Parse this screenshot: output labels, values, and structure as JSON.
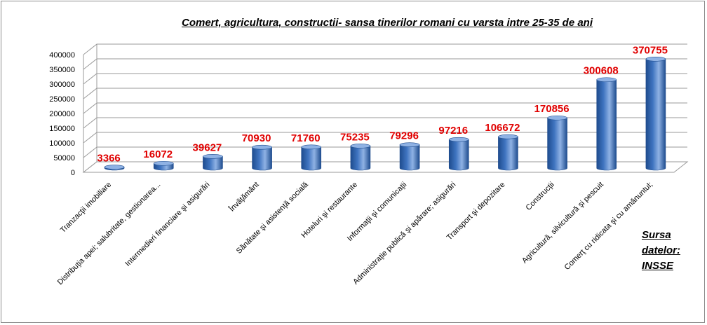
{
  "title": "Comert, agricultura, constructii- sansa tinerilor romani cu varsta intre 25-35 de ani",
  "source_note": "Sursa datelor: INSSE",
  "colors": {
    "bar": "#3f74c0",
    "bar_dark": "#1e4c8e",
    "bar_light": "#8fb2e4",
    "data_label": "#e00000",
    "gridline": "#9a9a9a"
  },
  "chart_data": {
    "type": "bar",
    "title": "Comert, agricultura, constructii- sansa tinerilor romani cu varsta intre 25-35 de ani",
    "categories": [
      "Tranzacţii imobiliare",
      "Distribuţia apei; salubritate, gestionarea...",
      "Intermedieri financiare şi asigurări",
      "Învăţământ",
      "Sănătate şi asistenţă socială",
      "Hoteluri şi restaurante",
      "Informaţii şi comunicaţii",
      "Administraţie publică şi apărare; asigurări",
      "Transport şi depozitare",
      "Construcţii",
      "Agricultură, silvicultură şi pescuit",
      "Comerţ cu ridicata şi cu amănuntul;"
    ],
    "values": [
      3366,
      16072,
      39627,
      70930,
      71760,
      75235,
      79296,
      97216,
      106672,
      170856,
      300608,
      370755
    ],
    "data_labels": [
      "3366",
      "16072",
      "39627",
      "70930",
      "71760",
      "75235",
      "79296",
      "97216",
      "106672",
      "170856",
      "300608",
      "370755"
    ],
    "ylim": [
      0,
      400000
    ],
    "yticks": [
      0,
      50000,
      100000,
      150000,
      200000,
      250000,
      300000,
      350000,
      400000
    ],
    "ytick_labels": [
      "0",
      "50000",
      "100000",
      "150000",
      "200000",
      "250000",
      "300000",
      "350000",
      "400000"
    ],
    "grid": true,
    "style": "3d-cylinder",
    "xlabel": "",
    "ylabel": ""
  }
}
